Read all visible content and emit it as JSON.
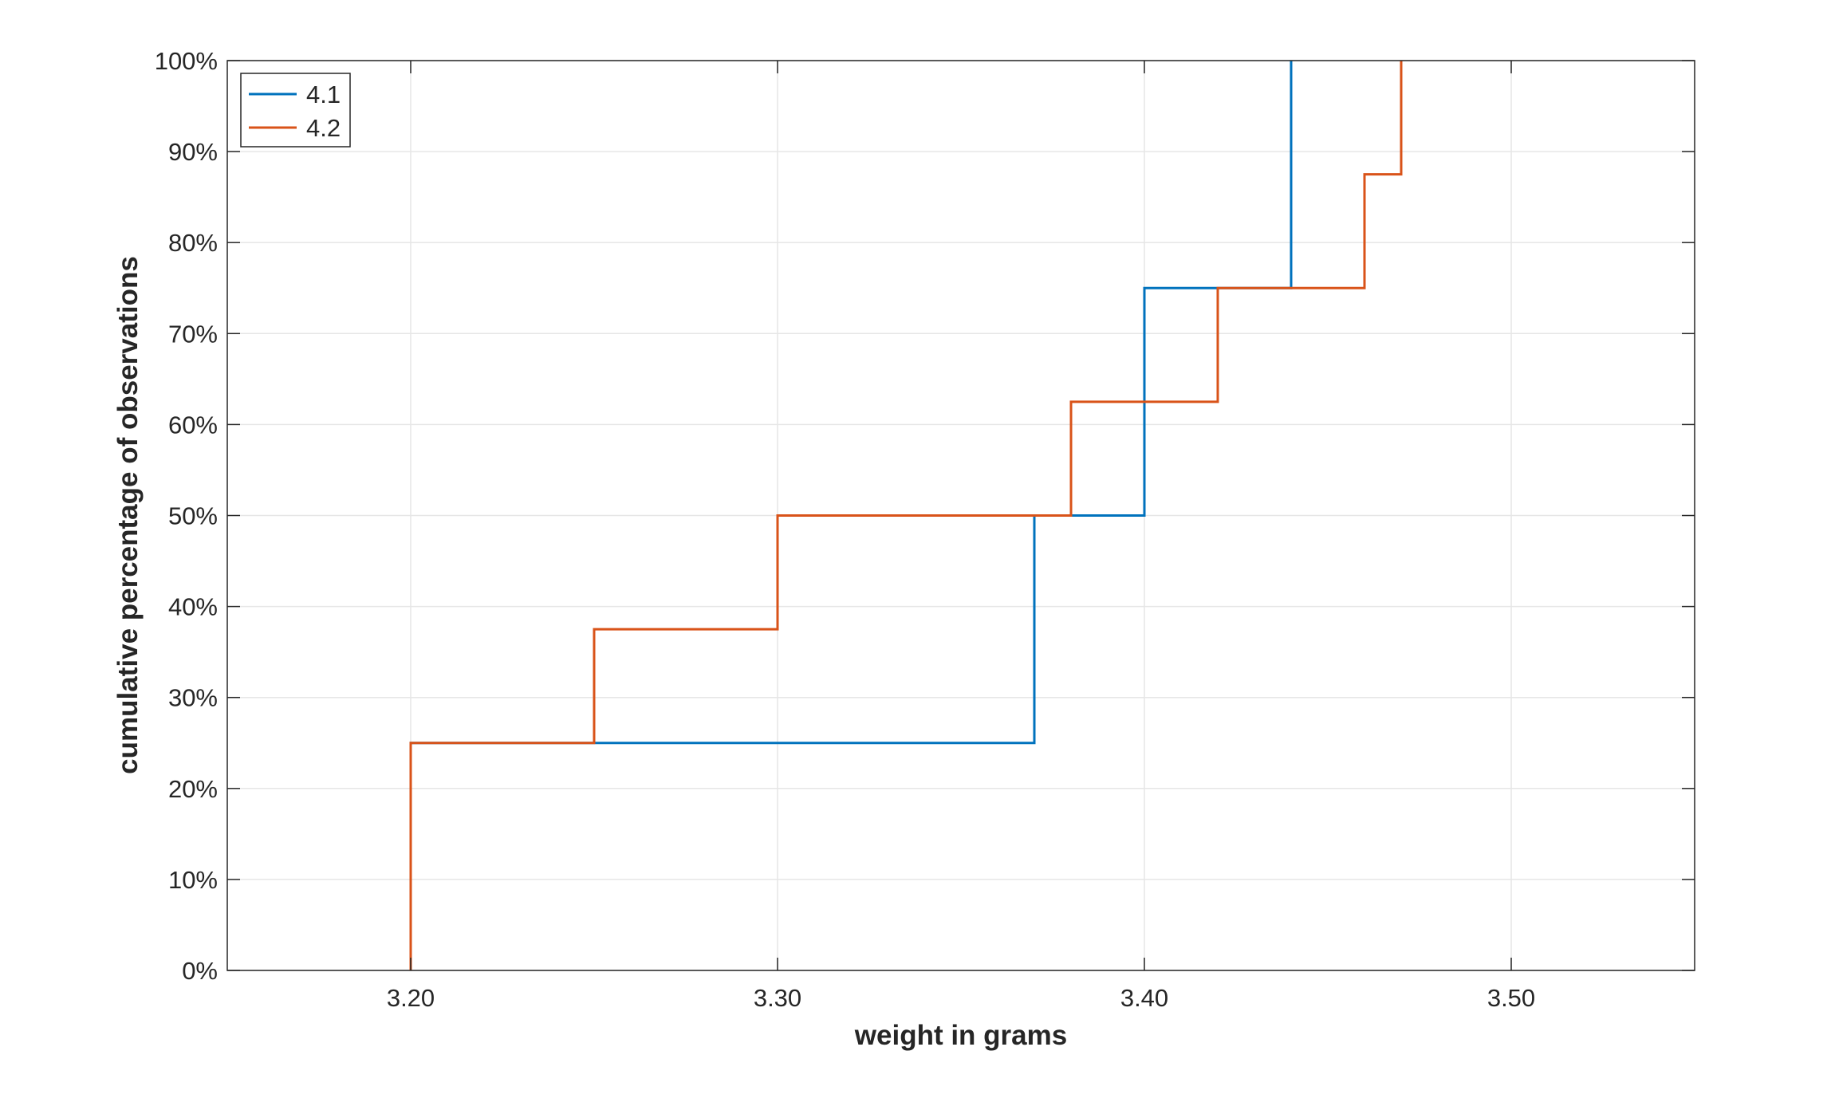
{
  "chart_data": {
    "type": "line",
    "step": true,
    "title": "",
    "xlabel": "weight in grams",
    "ylabel": "cumulative percentage of observations",
    "xlim": [
      3.15,
      3.55
    ],
    "ylim": [
      0,
      100
    ],
    "x_ticks": [
      3.2,
      3.3,
      3.4,
      3.5
    ],
    "x_tick_labels": [
      "3.20",
      "3.30",
      "3.40",
      "3.50"
    ],
    "y_ticks": [
      0,
      10,
      20,
      30,
      40,
      50,
      60,
      70,
      80,
      90,
      100
    ],
    "y_tick_labels": [
      "0%",
      "10%",
      "20%",
      "30%",
      "40%",
      "50%",
      "60%",
      "70%",
      "80%",
      "90%",
      "100%"
    ],
    "grid": true,
    "legend_position": "top-left",
    "series": [
      {
        "name": "4.1",
        "color": "#0072BD",
        "points": [
          [
            3.2,
            0
          ],
          [
            3.2,
            25
          ],
          [
            3.37,
            25
          ],
          [
            3.37,
            50
          ],
          [
            3.4,
            50
          ],
          [
            3.4,
            75
          ],
          [
            3.44,
            75
          ],
          [
            3.44,
            100
          ]
        ]
      },
      {
        "name": "4.2",
        "color": "#D95319",
        "points": [
          [
            3.2,
            0
          ],
          [
            3.2,
            25
          ],
          [
            3.25,
            25
          ],
          [
            3.25,
            37.5
          ],
          [
            3.3,
            37.5
          ],
          [
            3.3,
            50
          ],
          [
            3.38,
            50
          ],
          [
            3.38,
            62.5
          ],
          [
            3.42,
            62.5
          ],
          [
            3.42,
            75
          ],
          [
            3.46,
            75
          ],
          [
            3.46,
            87.5
          ],
          [
            3.47,
            87.5
          ],
          [
            3.47,
            100
          ]
        ]
      }
    ]
  }
}
